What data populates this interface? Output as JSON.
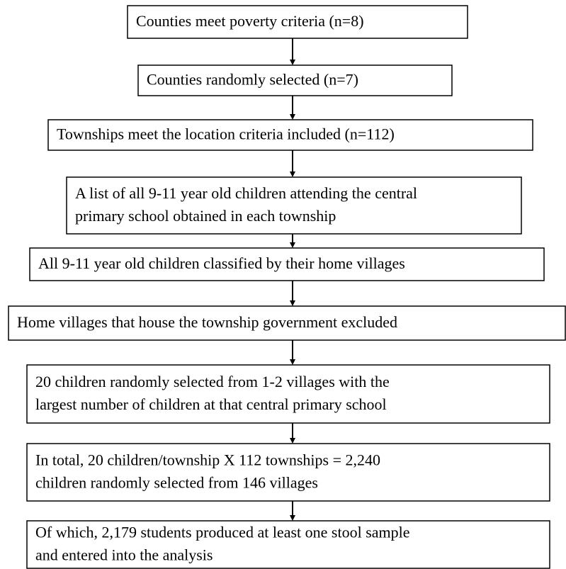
{
  "nodes": [
    {
      "lines": [
        "Counties meet poverty criteria (n=8)"
      ]
    },
    {
      "lines": [
        "Counties randomly selected (n=7)"
      ]
    },
    {
      "lines": [
        "Townships meet the location criteria included (n=112)"
      ]
    },
    {
      "lines": [
        "A list of all 9-11 year old children attending the central",
        "primary school obtained in each township"
      ]
    },
    {
      "lines": [
        "All 9-11 year old children classified by their home villages"
      ]
    },
    {
      "lines": [
        "Home villages that house the township government excluded"
      ]
    },
    {
      "lines": [
        "20 children randomly selected from 1-2 villages with the",
        "largest number of children at that central primary school"
      ]
    },
    {
      "lines": [
        "In total, 20 children/township X 112 townships = 2,240",
        "children randomly selected from 146 villages"
      ]
    },
    {
      "lines": [
        "Of which, 2,179 students produced at least one stool sample",
        "and entered into the analysis"
      ]
    }
  ]
}
